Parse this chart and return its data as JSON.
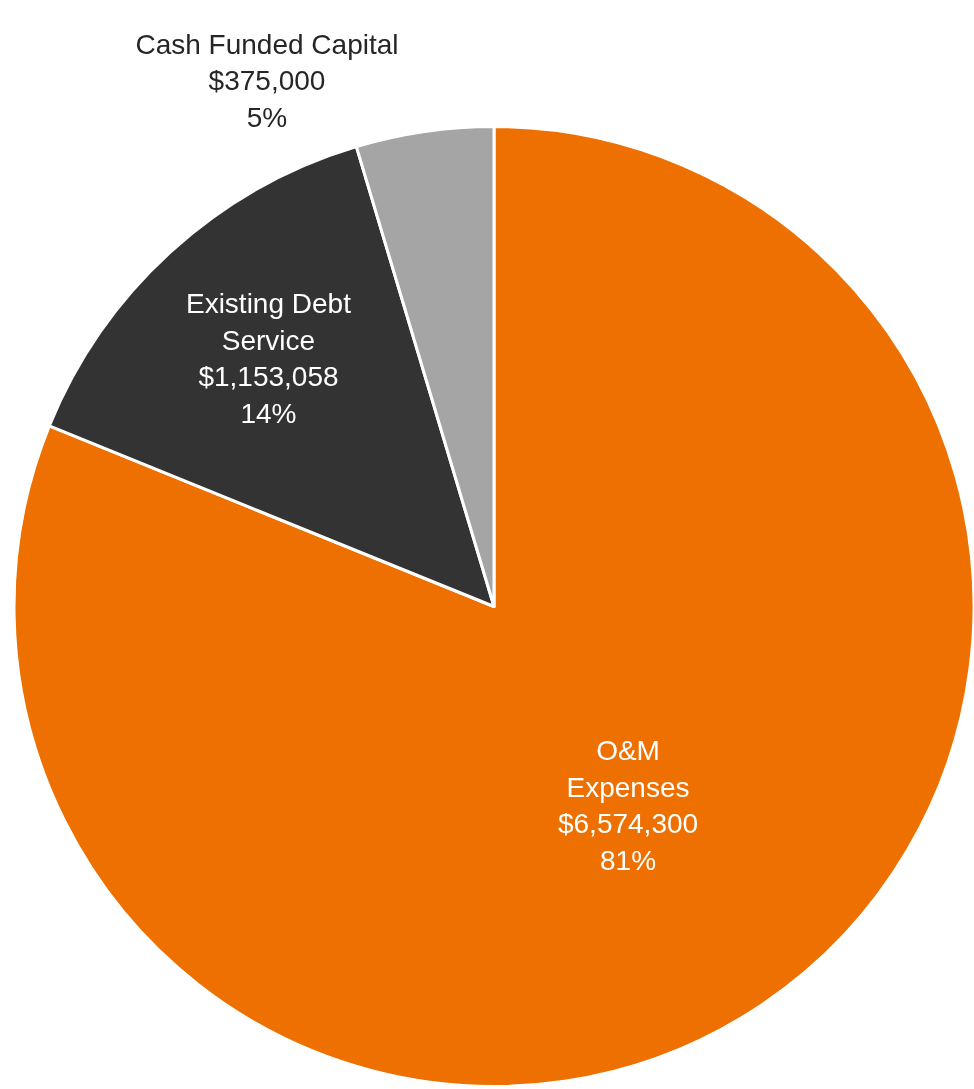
{
  "chart_data": {
    "type": "pie",
    "categories": [
      "O&M Expenses",
      "Existing Debt Service",
      "Cash Funded Capital"
    ],
    "values": [
      6574300,
      1153058,
      375000
    ],
    "colors": [
      "#ed7000",
      "#333333",
      "#a5a5a5"
    ],
    "value_labels": [
      "$6,574,300\n81%",
      "$1,153,058\n14%",
      "$375,000\n5%"
    ],
    "legend": false
  }
}
